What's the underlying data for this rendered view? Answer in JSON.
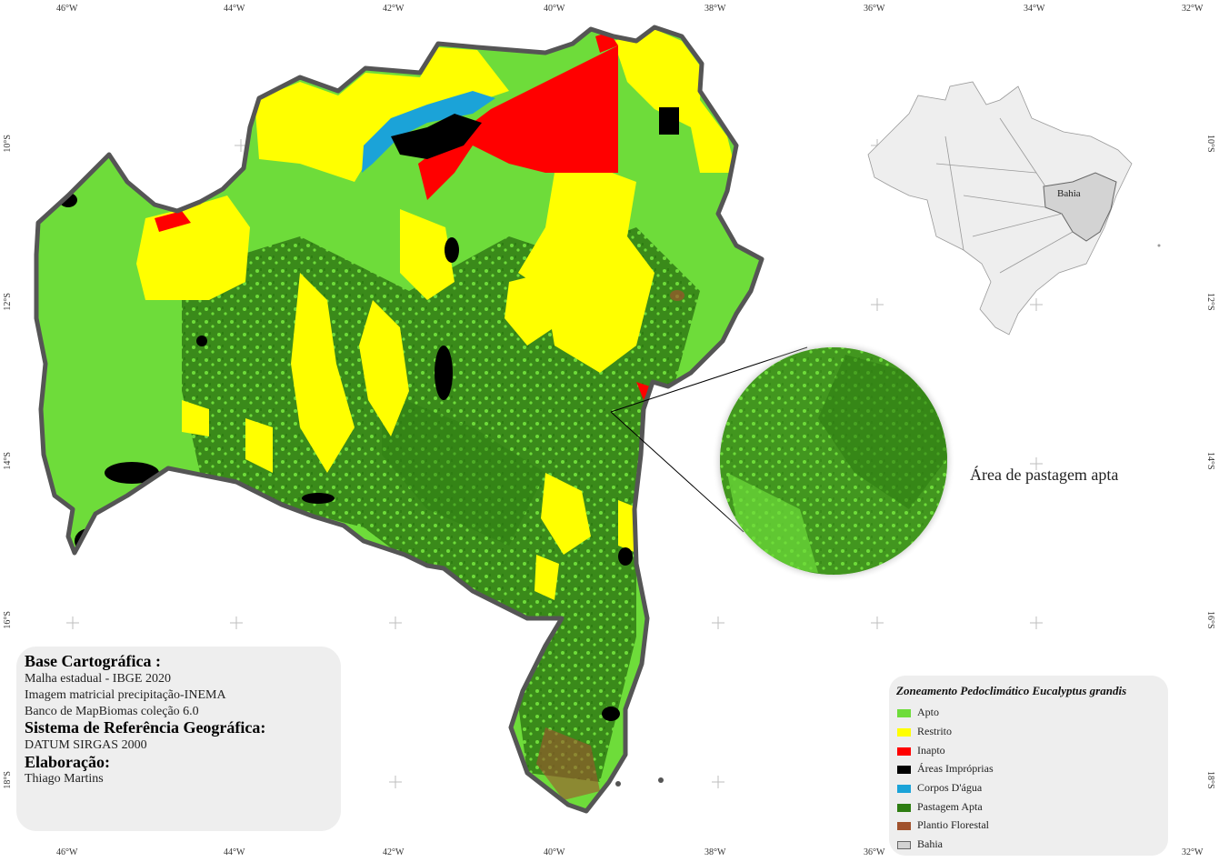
{
  "axes": {
    "top_lon": [
      "46°W",
      "44°W",
      "42°W",
      "40°W",
      "38°W",
      "36°W",
      "34°W",
      "32°W"
    ],
    "bottom_lon": [
      "46°W",
      "44°W",
      "42°W",
      "40°W",
      "38°W",
      "36°W",
      "34°W",
      "32°W"
    ],
    "left_lat": [
      "10°S",
      "12°S",
      "14°S",
      "16°S",
      "18°S"
    ],
    "right_lat": [
      "10°S",
      "12°S",
      "14°S",
      "16°S",
      "18°S"
    ]
  },
  "cartography": {
    "base_title": "Base Cartográfica :",
    "base_lines": [
      "Malha estadual - IBGE 2020",
      "Imagem matricial precipitação-INEMA",
      "Banco de MapBiomas coleção 6.0"
    ],
    "crs_title": "Sistema de Referência Geográfica:",
    "crs_value": "DATUM SIRGAS 2000",
    "author_title": "Elaboração:",
    "author_value": "Thiago Martins"
  },
  "legend": {
    "title": "Zoneamento Pedoclimático Eucalyptus grandis",
    "items": [
      {
        "label": "Apto",
        "color": "#6edc3a"
      },
      {
        "label": "Restrito",
        "color": "#ffff00"
      },
      {
        "label": "Inapto",
        "color": "#ff0000"
      },
      {
        "label": "Áreas Impróprias",
        "color": "#000000"
      },
      {
        "label": "Corpos D'água",
        "color": "#1ba3d8"
      },
      {
        "label": "Pastagem Apta",
        "color": "#2e7d12"
      },
      {
        "label": "Plantio Florestal",
        "color": "#a0522d"
      },
      {
        "label": "Bahia",
        "color": "#d3d3d3"
      }
    ]
  },
  "inset": {
    "state_label": "Bahia"
  },
  "zoom": {
    "caption": "Área de pastagem apta"
  },
  "colors": {
    "apto": "#6edc3a",
    "restrito": "#ffff00",
    "inapto": "#ff0000",
    "improprias": "#000000",
    "agua": "#1ba3d8",
    "pastagem": "#2e7d12",
    "plantio": "#a0522d",
    "bahia": "#d3d3d3"
  }
}
